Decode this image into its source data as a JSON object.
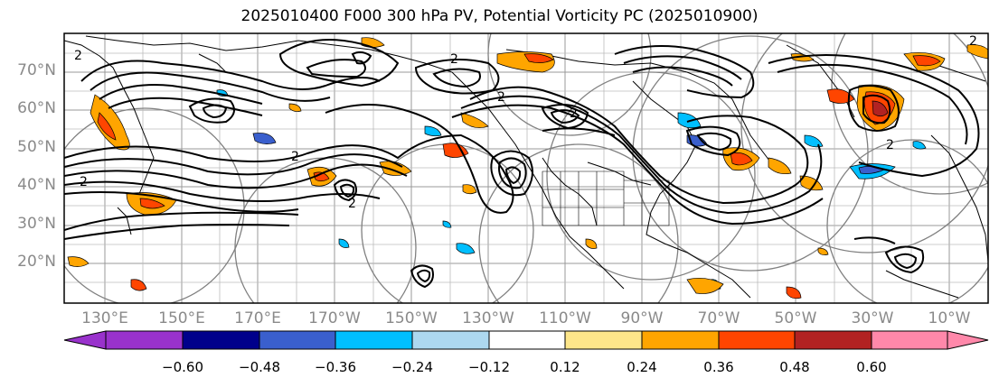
{
  "title": "2025010400 F000 300 hPa PV, Potential Vorticity PC (2025010900)",
  "map": {
    "lat_labels": [
      "70°N",
      "60°N",
      "50°N",
      "40°N",
      "30°N",
      "20°N"
    ],
    "lon_labels": [
      "130°E",
      "150°E",
      "170°E",
      "170°W",
      "150°W",
      "130°W",
      "110°W",
      "90°W",
      "70°W",
      "50°W",
      "30°W",
      "10°W"
    ],
    "contour_labels": [
      "2",
      "2",
      "2",
      "2",
      "2",
      "2",
      "2",
      "2",
      "2"
    ],
    "colors": {
      "contour": "#000000",
      "grid": "#999999",
      "coast": "#000000",
      "range_ring": "#808080",
      "label": "#8a8a8a"
    }
  },
  "colorbar": {
    "tick_labels": [
      "−0.60",
      "−0.48",
      "−0.36",
      "−0.24",
      "−0.12",
      "0.12",
      "0.24",
      "0.36",
      "0.48",
      "0.60"
    ],
    "colors": [
      "#9932cc",
      "#00008b",
      "#3a5fcd",
      "#00bfff",
      "#add8f0",
      "#ffffff",
      "#fde68a",
      "#ffa500",
      "#ff4500",
      "#b22222",
      "#ff88aa"
    ]
  }
}
